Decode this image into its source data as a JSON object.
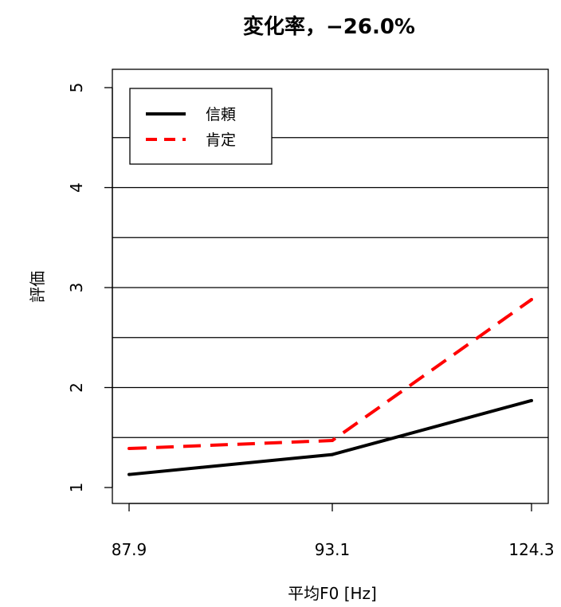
{
  "chart_data": {
    "type": "line",
    "title": "変化率，−26.0%",
    "xlabel": "平均F0 [Hz]",
    "ylabel": "評価",
    "categories": [
      "87.9",
      "93.1",
      "124.3"
    ],
    "yticks": [
      "1",
      "2",
      "3",
      "4",
      "5"
    ],
    "ylim": [
      1,
      5
    ],
    "gridlines_y": [
      1.5,
      2,
      2.5,
      3,
      3.5,
      4,
      4.5
    ],
    "legend_position": "top-left",
    "series": [
      {
        "name": "信頼",
        "values": [
          1.13,
          1.33,
          1.87
        ],
        "color": "#000000",
        "style": "solid"
      },
      {
        "name": "肯定",
        "values": [
          1.39,
          1.47,
          2.88
        ],
        "color": "#ff0000",
        "style": "dashed"
      }
    ]
  }
}
